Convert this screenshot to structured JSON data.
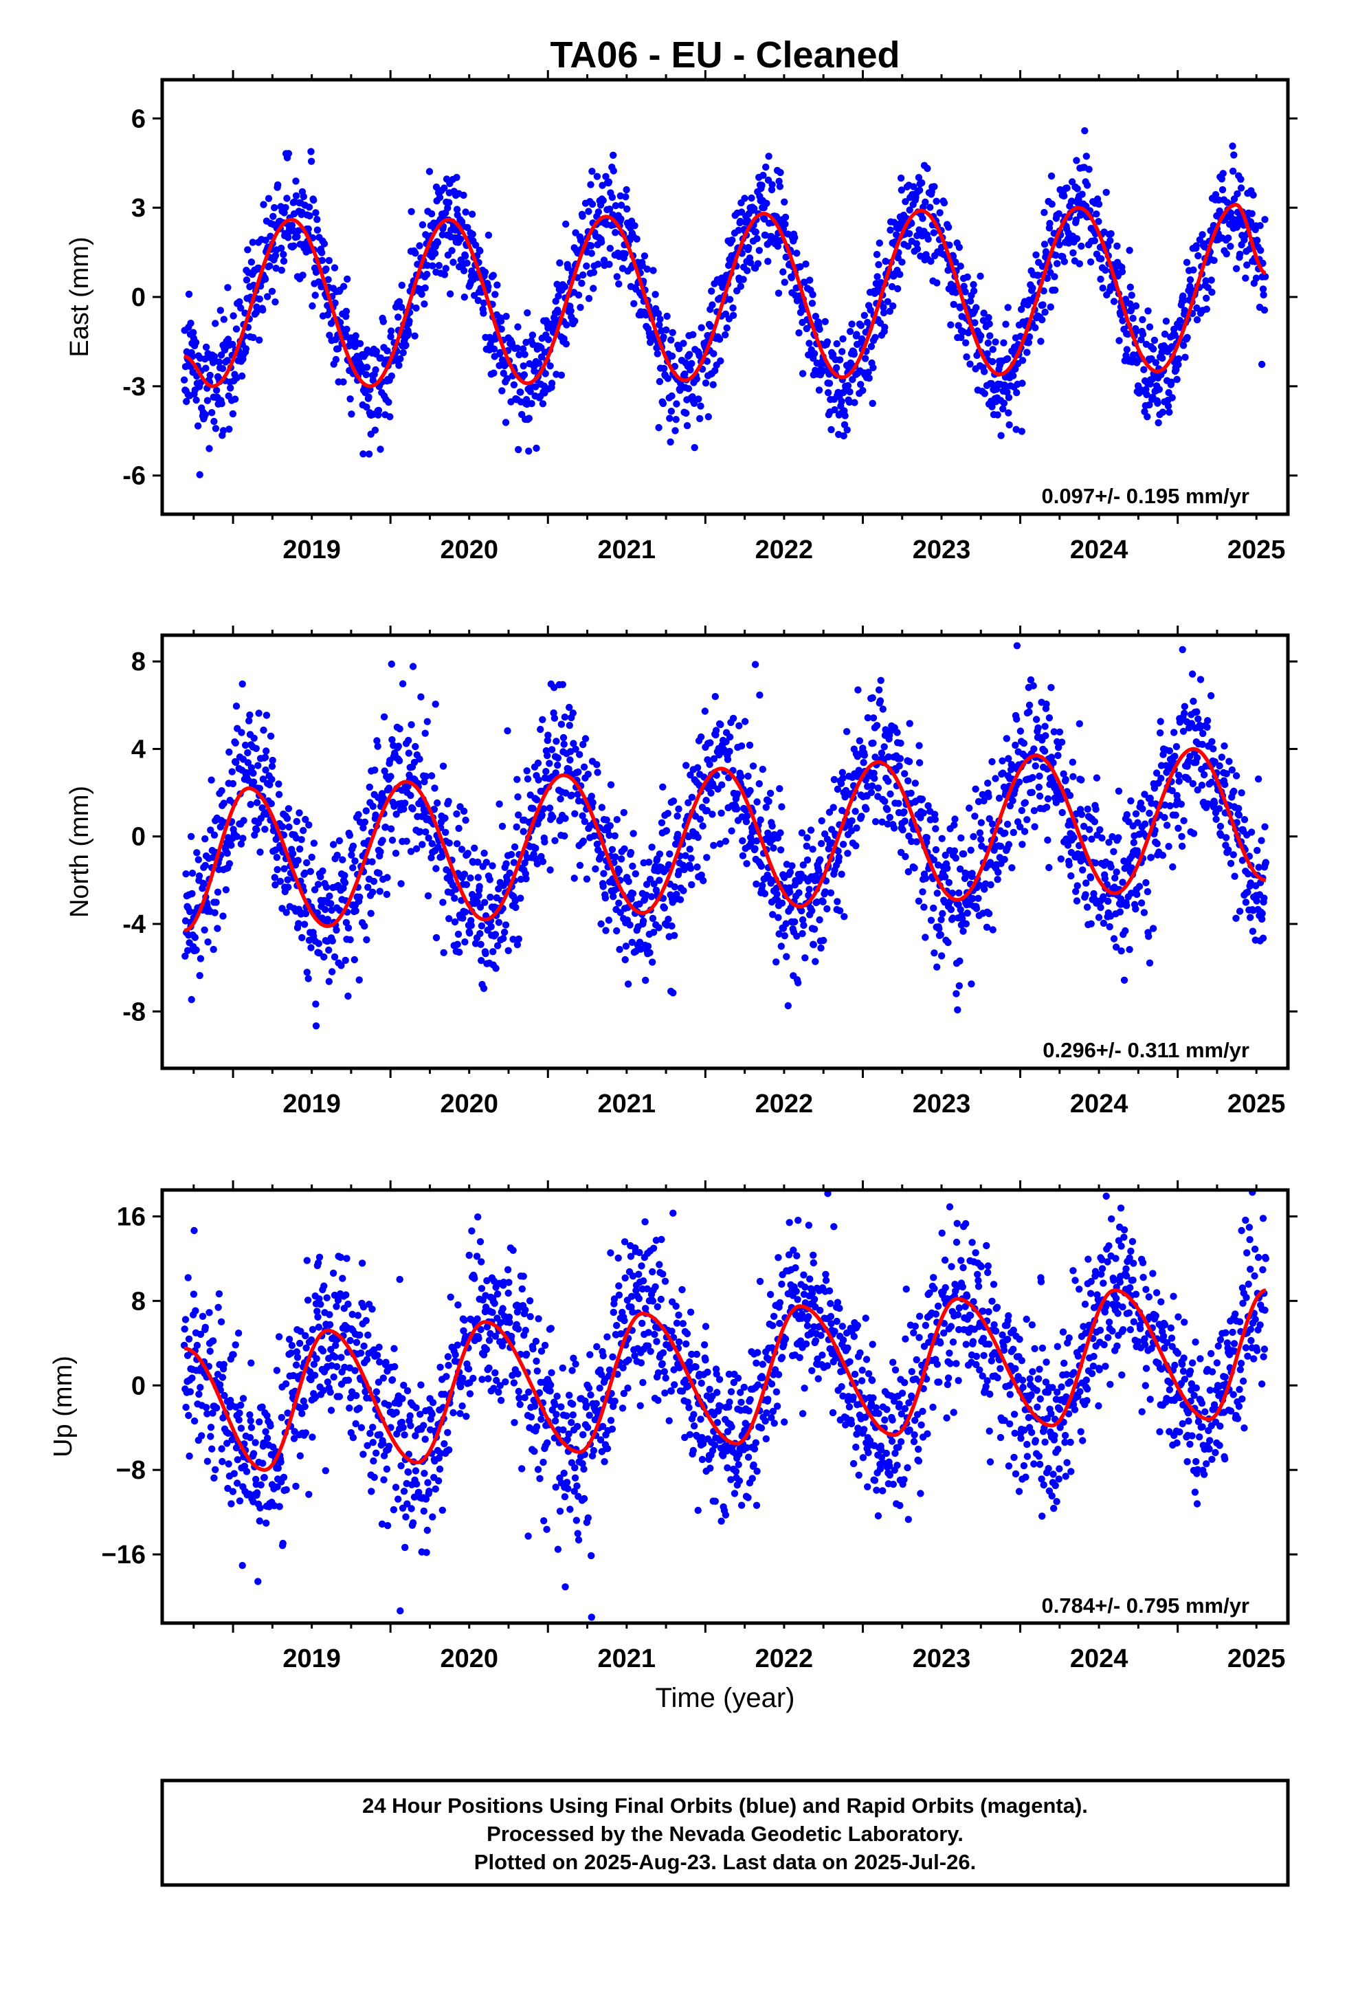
{
  "title": "TA06  - EU - Cleaned",
  "colors": {
    "points": "#0000ff",
    "fit": "#ff0000",
    "frame": "#000000"
  },
  "chart_data": [
    {
      "type": "scatter",
      "id": "east",
      "ylabel": "East (mm)",
      "xlabel": "",
      "xlim": [
        2018.55,
        2025.7
      ],
      "ylim": [
        -7.3,
        7.3
      ],
      "yticks": [
        -6,
        -3,
        0,
        3,
        6
      ],
      "yticklabels": [
        "-6",
        "-3",
        "0",
        "3",
        "6"
      ],
      "xticks": [
        2019,
        2020,
        2021,
        2022,
        2023,
        2024,
        2025
      ],
      "xticklabels": [
        "2019",
        "2020",
        "2021",
        "2022",
        "2023",
        "2024",
        "2025"
      ],
      "rate_label": "0.097+/- 0.195 mm/yr",
      "series": [
        {
          "kind": "points",
          "x_start": 2018.69,
          "x_end": 2025.56,
          "step_days": 1,
          "seed": 11,
          "phase_peak": 0.37,
          "noise_sd": 0.9
        },
        {
          "kind": "fit_curve",
          "x": [
            2018.69,
            2018.87,
            2019.37,
            2019.87,
            2020.37,
            2020.87,
            2021.37,
            2021.87,
            2022.37,
            2022.87,
            2023.37,
            2023.87,
            2024.37,
            2024.87,
            2025.37,
            2025.56
          ],
          "y": [
            -2.0,
            -3.0,
            2.6,
            -3.0,
            2.6,
            -2.9,
            2.7,
            -2.8,
            2.8,
            -2.7,
            2.9,
            -2.6,
            3.0,
            -2.5,
            3.1,
            0.8
          ]
        }
      ]
    },
    {
      "type": "scatter",
      "id": "north",
      "ylabel": "North (mm)",
      "xlabel": "",
      "xlim": [
        2018.55,
        2025.7
      ],
      "ylim": [
        -10.6,
        9.2
      ],
      "yticks": [
        -8,
        -4,
        0,
        4,
        8
      ],
      "yticklabels": [
        "-8",
        "-4",
        "0",
        "4",
        "8"
      ],
      "xticks": [
        2019,
        2020,
        2021,
        2022,
        2023,
        2024,
        2025
      ],
      "xticklabels": [
        "2019",
        "2020",
        "2021",
        "2022",
        "2023",
        "2024",
        "2025"
      ],
      "rate_label": "0.296+/- 0.311 mm/yr",
      "series": [
        {
          "kind": "points",
          "x_start": 2018.69,
          "x_end": 2025.56,
          "step_days": 1,
          "seed": 23,
          "phase_peak": 0.1,
          "noise_sd": 1.7
        },
        {
          "kind": "fit_curve",
          "x": [
            2018.69,
            2019.1,
            2019.6,
            2020.1,
            2020.6,
            2021.1,
            2021.6,
            2022.1,
            2022.6,
            2023.1,
            2023.6,
            2024.1,
            2024.6,
            2025.1,
            2025.56
          ],
          "y": [
            -4.3,
            2.2,
            -4.1,
            2.5,
            -3.8,
            2.8,
            -3.5,
            3.1,
            -3.2,
            3.4,
            -2.9,
            3.7,
            -2.6,
            4.0,
            -2.0
          ]
        }
      ]
    },
    {
      "type": "scatter",
      "id": "up",
      "ylabel": "Up (mm)",
      "xlabel": "Time (year)",
      "xlim": [
        2018.55,
        2025.7
      ],
      "ylim": [
        -22.5,
        18.5
      ],
      "yticks": [
        -16,
        -8,
        0,
        8,
        16
      ],
      "yticklabels": [
        "−16",
        "−8",
        "0",
        "8",
        "16"
      ],
      "xticks": [
        2019,
        2020,
        2021,
        2022,
        2023,
        2024,
        2025
      ],
      "xticklabels": [
        "2019",
        "2020",
        "2021",
        "2022",
        "2023",
        "2024",
        "2025"
      ],
      "rate_label": "0.784+/- 0.795 mm/yr",
      "series": [
        {
          "kind": "points",
          "x_start": 2018.69,
          "x_end": 2025.56,
          "step_days": 1,
          "seed": 37,
          "phase_peak": 0.6,
          "noise_sd": 4.0
        },
        {
          "kind": "fit_curve",
          "x": [
            2018.69,
            2019.2,
            2019.6,
            2020.17,
            2020.6,
            2021.2,
            2021.6,
            2022.2,
            2022.6,
            2023.2,
            2023.6,
            2024.2,
            2024.6,
            2025.2,
            2025.56
          ],
          "y": [
            3.5,
            -8.0,
            5.2,
            -7.3,
            6.0,
            -6.3,
            6.8,
            -5.5,
            7.5,
            -4.7,
            8.2,
            -3.8,
            9.0,
            -3.2,
            9.0
          ]
        }
      ]
    }
  ],
  "footer": {
    "line1": "24 Hour Positions Using Final Orbits (blue) and Rapid Orbits (magenta).",
    "line2": "Processed by the Nevada Geodetic Laboratory.",
    "line3": "Plotted on 2025-Aug-23. Last data on 2025-Jul-26."
  }
}
